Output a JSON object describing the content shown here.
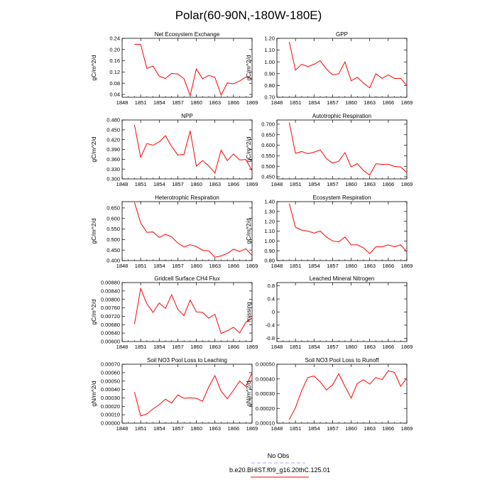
{
  "title": "Polar(60-90N,-180W-180E)",
  "chart_data": [
    {
      "type": "line",
      "title": "Net Ecosystem Exchange",
      "ylabel": "gC/m^2/d",
      "ylim": [
        0.03,
        0.24
      ],
      "yticks": [
        "0.04",
        "0.08",
        "0.12",
        "0.16",
        "0.20",
        "0.24"
      ],
      "series": [
        {
          "name": "b.e20.BHIST.f09_g16.20thC.125.01",
          "color": "#ff0000",
          "values": [
            0.219,
            0.218,
            0.133,
            0.141,
            0.105,
            0.097,
            0.115,
            0.113,
            0.096,
            0.036,
            0.131,
            0.096,
            0.108,
            0.101,
            0.038,
            0.081,
            0.078,
            0.088,
            0.102,
            0.097
          ]
        }
      ]
    },
    {
      "type": "line",
      "title": "GPP",
      "ylabel": "gC/m^2/d",
      "ylim": [
        0.7,
        1.2
      ],
      "yticks": [
        "0.70",
        "0.80",
        "0.90",
        "1.00",
        "1.10",
        "1.20"
      ],
      "series": [
        {
          "name": "b.e20.BHIST.f09_g16.20thC.125.01",
          "color": "#ff0000",
          "values": [
            1.17,
            0.93,
            0.98,
            0.96,
            0.98,
            1.01,
            0.94,
            0.89,
            0.9,
            1.0,
            0.84,
            0.87,
            0.82,
            0.78,
            0.9,
            0.86,
            0.89,
            0.86,
            0.86,
            0.8
          ]
        }
      ]
    },
    {
      "type": "line",
      "title": "NPP",
      "ylabel": "gC/m^2/d",
      "ylim": [
        0.3,
        0.48
      ],
      "yticks": [
        "0.300",
        "0.330",
        "0.360",
        "0.390",
        "0.420",
        "0.450",
        "0.480"
      ],
      "series": [
        {
          "name": "b.e20.BHIST.f09_g16.20thC.125.01",
          "color": "#ff0000",
          "values": [
            0.465,
            0.366,
            0.408,
            0.403,
            0.413,
            0.432,
            0.399,
            0.373,
            0.375,
            0.447,
            0.339,
            0.356,
            0.34,
            0.318,
            0.388,
            0.356,
            0.376,
            0.358,
            0.359,
            0.325
          ]
        }
      ]
    },
    {
      "type": "line",
      "title": "Autotrophic Respiration",
      "ylabel": "gC/m^2/d",
      "ylim": [
        0.44,
        0.72
      ],
      "yticks": [
        "0.450",
        "0.500",
        "0.550",
        "0.600",
        "0.650",
        "0.700"
      ],
      "series": [
        {
          "name": "b.e20.BHIST.f09_g16.20thC.125.01",
          "color": "#ff0000",
          "values": [
            0.708,
            0.562,
            0.57,
            0.56,
            0.567,
            0.578,
            0.537,
            0.515,
            0.524,
            0.565,
            0.497,
            0.512,
            0.48,
            0.458,
            0.512,
            0.509,
            0.51,
            0.499,
            0.497,
            0.47
          ]
        }
      ]
    },
    {
      "type": "line",
      "title": "Heterotrophic Respiration",
      "ylabel": "gC/m^2/d",
      "ylim": [
        0.4,
        0.68
      ],
      "yticks": [
        "0.400",
        "0.450",
        "0.500",
        "0.550",
        "0.600",
        "0.650"
      ],
      "series": [
        {
          "name": "b.e20.BHIST.f09_g16.20thC.125.01",
          "color": "#ff0000",
          "values": [
            0.676,
            0.579,
            0.534,
            0.536,
            0.51,
            0.525,
            0.513,
            0.483,
            0.465,
            0.475,
            0.467,
            0.449,
            0.446,
            0.416,
            0.422,
            0.434,
            0.454,
            0.443,
            0.456,
            0.425
          ]
        }
      ]
    },
    {
      "type": "line",
      "title": "Ecosystem Respiration",
      "ylabel": "gC/m^2/d",
      "ylim": [
        0.8,
        1.4
      ],
      "yticks": [
        "0.80",
        "0.90",
        "1.00",
        "1.10",
        "1.20",
        "1.30",
        "1.40"
      ],
      "series": [
        {
          "name": "b.e20.BHIST.f09_g16.20thC.125.01",
          "color": "#ff0000",
          "values": [
            1.38,
            1.14,
            1.11,
            1.1,
            1.08,
            1.1,
            1.04,
            1.0,
            0.99,
            1.04,
            0.96,
            0.96,
            0.93,
            0.87,
            0.94,
            0.94,
            0.96,
            0.94,
            0.96,
            0.89
          ]
        }
      ]
    },
    {
      "type": "line",
      "title": "Gridcell Surface CH4 Flux",
      "ylabel": "gC/m^2/d",
      "ylim": [
        0.006,
        0.0088
      ],
      "yticks": [
        "0.00600",
        "0.00640",
        "0.00680",
        "0.00720",
        "0.00760",
        "0.00800",
        "0.00840",
        "0.00880"
      ],
      "series": [
        {
          "name": "b.e20.BHIST.f09_g16.20thC.125.01",
          "color": "#ff0000",
          "values": [
            0.00683,
            0.00852,
            0.00779,
            0.00738,
            0.00783,
            0.00757,
            0.00822,
            0.00753,
            0.00723,
            0.00797,
            0.00741,
            0.00738,
            0.00711,
            0.00729,
            0.00638,
            0.00651,
            0.00668,
            0.00641,
            0.00691,
            0.00712
          ]
        }
      ]
    },
    {
      "type": "line",
      "title": "Leached Mineral Nitrogen",
      "ylabel": "missing",
      "ylim": [
        -0.9,
        0.9
      ],
      "yticks": [
        "-0.8",
        "-0.4",
        "0",
        "0.4",
        "0.8"
      ],
      "series": []
    },
    {
      "type": "line",
      "title": "Soil NO3 Pool Loss to Leaching",
      "ylabel": "gN/m^2/d",
      "ylim": [
        0,
        0.0007
      ],
      "yticks": [
        "0.00000",
        "0.00010",
        "0.00020",
        "0.00030",
        "0.00040",
        "0.00050",
        "0.00060",
        "0.00070"
      ],
      "series": [
        {
          "name": "b.e20.BHIST.f09_g16.20thC.125.01",
          "color": "#ff0000",
          "values": [
            0.00037,
            8.5e-05,
            0.00011,
            0.00017,
            0.00022,
            0.000285,
            0.00024,
            0.000335,
            0.000295,
            0.0003,
            0.000295,
            0.00026,
            0.00043,
            0.000565,
            0.00038,
            0.00029,
            0.00039,
            0.0005,
            0.000435,
            0.0006
          ]
        }
      ]
    },
    {
      "type": "line",
      "title": "Soil NO3 Pool Loss to Runoff",
      "ylabel": "gN/m^2/d",
      "ylim": [
        0.0001,
        0.0005
      ],
      "yticks": [
        "0.00010",
        "0.00020",
        "0.00030",
        "0.00040",
        "0.00050"
      ],
      "series": [
        {
          "name": "b.e20.BHIST.f09_g16.20thC.125.01",
          "color": "#ff0000",
          "values": [
            0.000125,
            0.000205,
            0.00032,
            0.00041,
            0.00042,
            0.00038,
            0.000325,
            0.00036,
            0.000435,
            0.00035,
            0.00027,
            0.00037,
            0.000395,
            0.000365,
            0.00041,
            0.000395,
            0.000455,
            0.000445,
            0.00035,
            0.000405
          ]
        }
      ]
    }
  ],
  "x_start": 1850,
  "xticks": [
    "1848",
    "1851",
    "1854",
    "1857",
    "1860",
    "1863",
    "1866",
    "1869"
  ],
  "legend": {
    "no_obs_label": "No Obs",
    "no_obs_color": "#aaaaff",
    "model_label": "b.e20.BHIST.f09_g16.20thC.125.01",
    "model_color": "#ff0000"
  }
}
